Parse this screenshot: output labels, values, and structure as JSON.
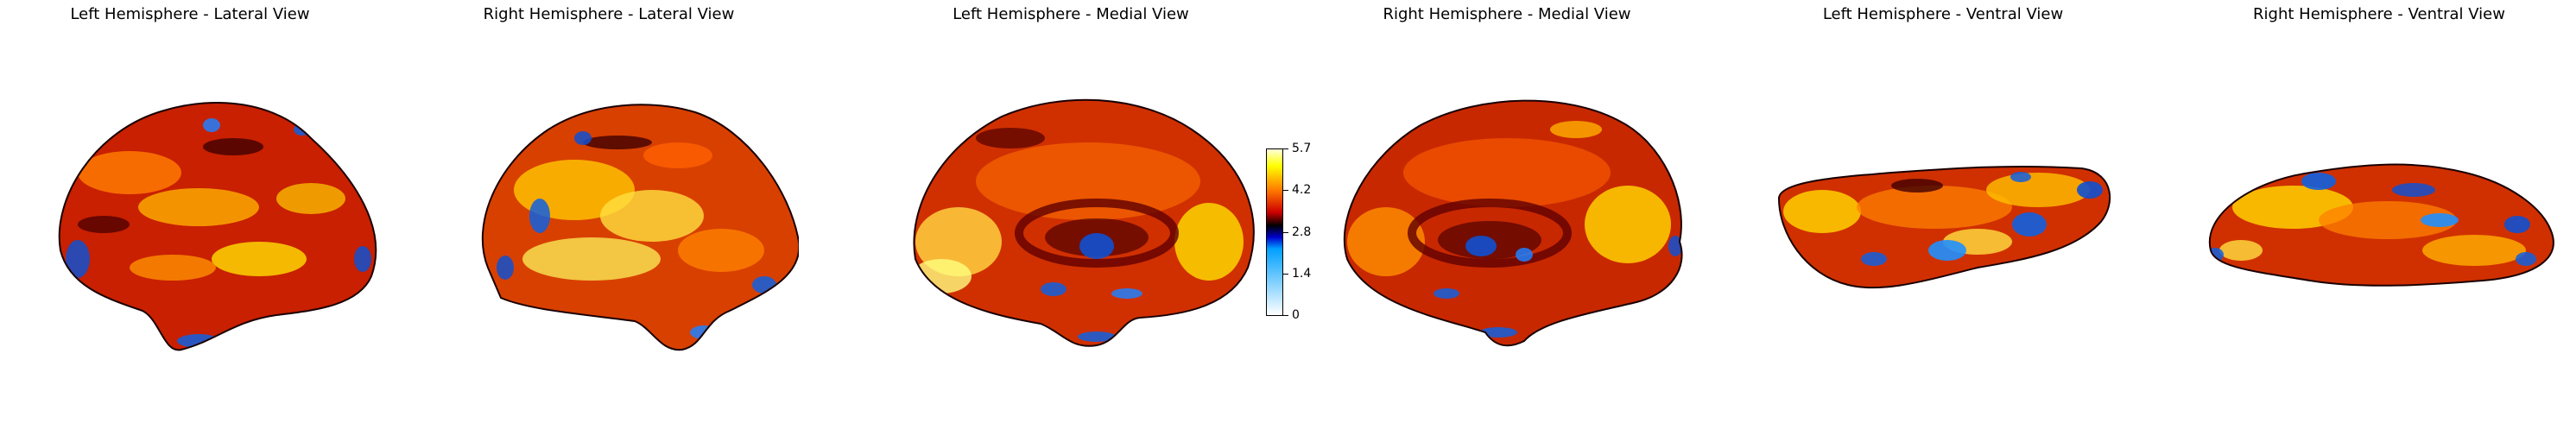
{
  "panels": [
    {
      "title": "Left Hemisphere - Lateral View"
    },
    {
      "title": "Right Hemisphere - Lateral View"
    },
    {
      "title": "Left Hemisphere - Medial View"
    },
    {
      "title": "Right Hemisphere - Medial View"
    },
    {
      "title": "Left Hemisphere - Ventral View"
    },
    {
      "title": "Right Hemisphere - Ventral View"
    }
  ],
  "colorbar": {
    "ticks": [
      "5.7",
      "4.2",
      "2.8",
      "1.4",
      "0"
    ],
    "tick_values": [
      5.7,
      4.2,
      2.8,
      1.4,
      0
    ],
    "range": [
      0,
      5.7
    ],
    "colormap": [
      "#ffffff",
      "#00a0ff",
      "#0000cc",
      "#000000",
      "#cc0000",
      "#ff7700",
      "#ffff00",
      "#ffffdd"
    ]
  }
}
